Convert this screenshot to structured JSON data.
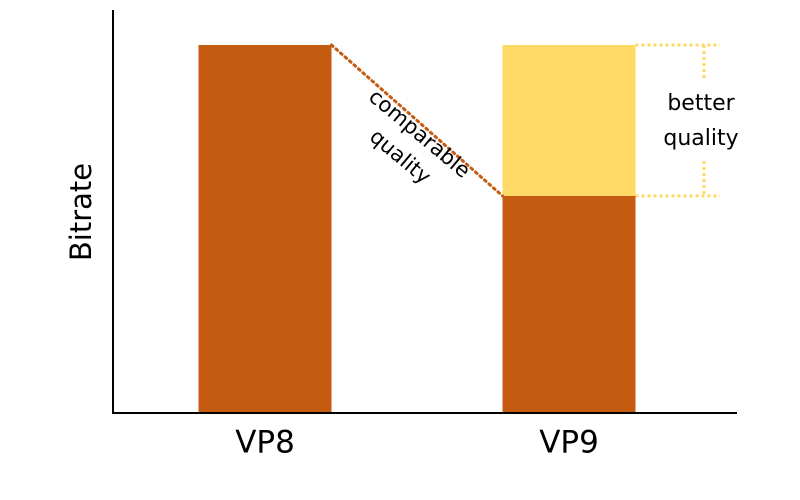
{
  "chart_data": {
    "type": "bar",
    "ylabel": "Bitrate",
    "xlabel": "",
    "categories": [
      "VP8",
      "VP9"
    ],
    "ylim": [
      0,
      100
    ],
    "grid": false,
    "bars": [
      {
        "category": "VP8",
        "base": 100,
        "extra": 0
      },
      {
        "category": "VP9",
        "base": 59,
        "extra": 41
      }
    ],
    "annotations": [
      {
        "text": [
          "comparable",
          "quality"
        ],
        "connects": "VP8 top to VP9 base top"
      },
      {
        "text": [
          "better",
          "quality"
        ],
        "span": "VP9 extra segment"
      }
    ]
  },
  "colors": {
    "base": "#C55A11",
    "extra": "#FFD966",
    "connector": "#C55A11",
    "axis": "#000000",
    "text": "#000000"
  }
}
